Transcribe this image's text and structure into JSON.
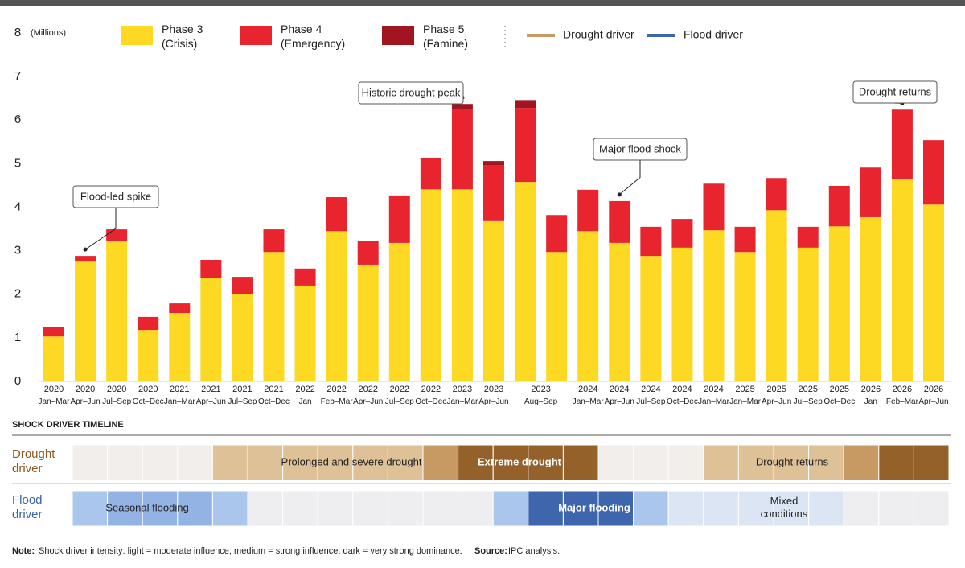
{
  "chart_data": {
    "type": "stacked_bar",
    "y_unit": "(Millions)",
    "categories": [
      "2020 Jan–Mar",
      "2020 Apr–Jun",
      "2020 Jul–Sep",
      "2020 Oct–Dec",
      "2021 Jan–Mar",
      "2021 Apr–Jun",
      "2021 Jul–Sep",
      "2021 Oct–Dec",
      "2022 Jan",
      "2022 Feb–Mar",
      "2022 Apr–Jun",
      "2022 Jul–Sep",
      "2022 Oct–Dec",
      "2023 Jan–Mar",
      "2023 Apr–Jun",
      null,
      "2023 Aug–Sep",
      "2024 Jan–Mar",
      "2024 Apr–Jun",
      "2024 Jul–Sep",
      "2024 Oct–Dec",
      "2024 Jan–Mar",
      "2025 Jan–Mar",
      "2025 Apr–Jun",
      "2025 Jul–Sep",
      "2025 Oct–Dec",
      "2026 Jan",
      "2026 Feb–Mar",
      "2026 Apr–Jun"
    ],
    "series": [
      {
        "name": "Phase 3 (Crisis)",
        "color": "#fdd923",
        "values": [
          1.03,
          2.75,
          3.23,
          1.18,
          1.57,
          2.38,
          2.0,
          2.97,
          2.2,
          3.45,
          2.68,
          3.18,
          4.41,
          4.41,
          3.68,
          4.58,
          2.97,
          3.45,
          3.18,
          2.88,
          3.07,
          3.47,
          2.97,
          3.93,
          3.07,
          3.56,
          3.77,
          4.65,
          4.06
        ]
      },
      {
        "name": "Phase 4 (Emergency)",
        "color": "#e8242e",
        "values": [
          0.22,
          0.13,
          0.26,
          0.3,
          0.22,
          0.41,
          0.4,
          0.52,
          0.39,
          0.78,
          0.55,
          1.09,
          0.72,
          1.85,
          1.29,
          1.7,
          0.85,
          0.95,
          0.96,
          0.67,
          0.66,
          1.07,
          0.58,
          0.74,
          0.48,
          0.93,
          1.14,
          1.59,
          1.48
        ]
      },
      {
        "name": "Phase 5 (Famine)",
        "color": "#a0151f",
        "values": [
          0,
          0,
          0,
          0,
          0,
          0,
          0,
          0,
          0,
          0,
          0,
          0,
          0,
          0.11,
          0.09,
          0.18,
          0,
          0,
          0,
          0,
          0,
          0,
          0,
          0,
          0,
          0,
          0,
          0,
          0
        ]
      }
    ],
    "ylim": [
      0,
      8
    ],
    "yticks": [
      0,
      1,
      2,
      3,
      4,
      5,
      6,
      7,
      8
    ],
    "annotations": [
      "Flood-led spike",
      "Historic drought peak",
      "Major flood shock",
      "Drought returns"
    ]
  },
  "timeline": {
    "title": "SHOCK DRIVER TIMELINE",
    "rows": [
      {
        "name": "Drought driver",
        "color": "#8b5a1b",
        "cell_colors": {
          "none": "#f1eeec",
          "light": "#dfc197",
          "medium": "#c69a62",
          "dark": "#95612a"
        },
        "cells": [
          "none",
          "none",
          "none",
          "none",
          "light",
          "light",
          "light",
          "light",
          "light",
          "light",
          "medium",
          "dark",
          "dark",
          "dark",
          "dark",
          "none",
          "none",
          "none",
          "light",
          "light",
          "light",
          "light",
          "medium",
          "dark",
          "dark"
        ],
        "labels": [
          "Prolonged and severe drought",
          "Extreme drought",
          "Drought returns"
        ]
      },
      {
        "name": "Flood driver",
        "color": "#3a63a8",
        "cell_colors": {
          "none": "#eeeef0",
          "pale": "#dce5f3",
          "light": "#abc6ec",
          "medium": "#92b3e3",
          "dark": "#3e66ad"
        },
        "cells": [
          "light",
          "medium",
          "medium",
          "medium",
          "light",
          "none",
          "none",
          "none",
          "none",
          "none",
          "none",
          "none",
          "light",
          "dark",
          "dark",
          "dark",
          "light",
          "pale",
          "pale",
          "pale",
          "pale",
          "pale",
          "none",
          "none",
          "none"
        ],
        "labels": [
          "Seasonal flooding",
          "Major flooding",
          "Mixed conditions"
        ]
      }
    ]
  },
  "footer": {
    "note_label": "Note:",
    "note": "Shock driver intensity: light = moderate influence; medium = strong influence; dark = very strong dominance.",
    "source_label": "Source:",
    "source": "IPC analysis."
  }
}
